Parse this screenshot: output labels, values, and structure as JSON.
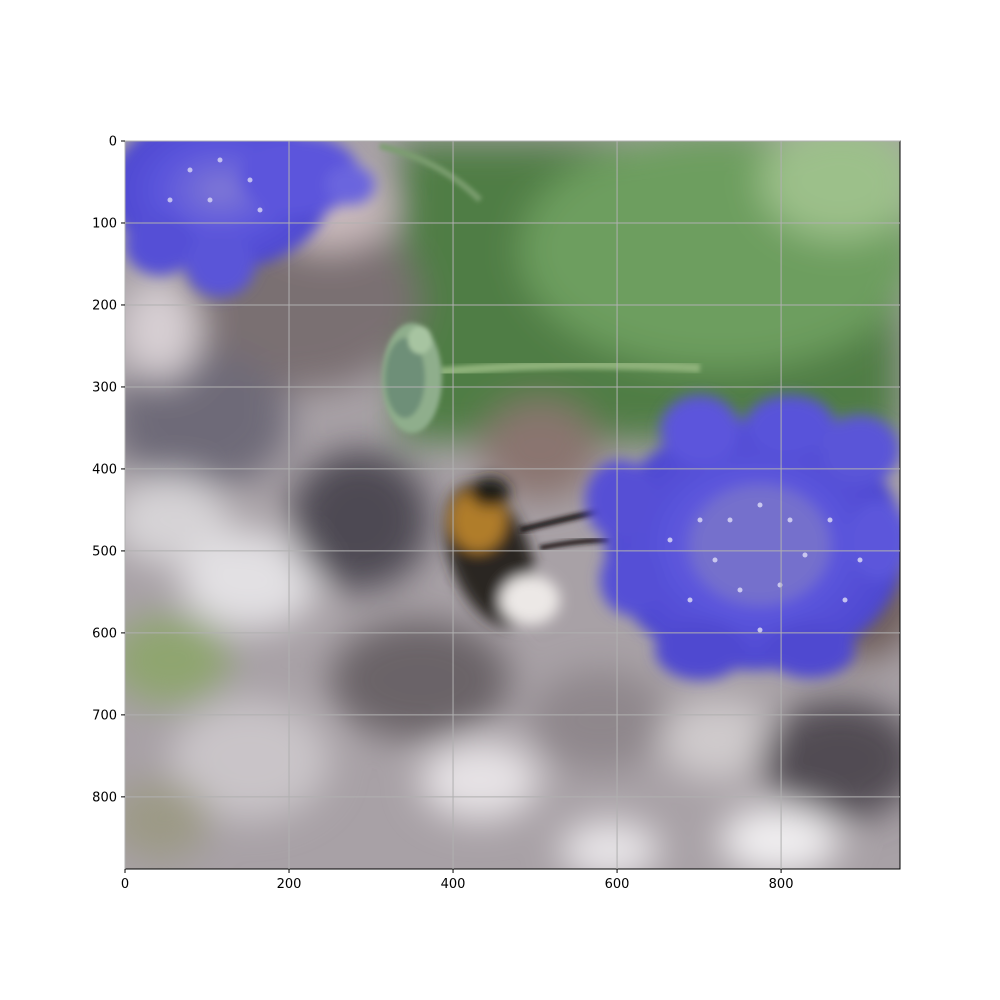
{
  "chart_data": {
    "type": "image",
    "title": "",
    "xlabel": "",
    "ylabel": "",
    "grid": true,
    "xlim": [
      0,
      945
    ],
    "ylim": [
      888,
      0
    ],
    "xticks": [
      0,
      200,
      400,
      600,
      800
    ],
    "yticks": [
      0,
      100,
      200,
      300,
      400,
      500,
      600,
      700,
      800
    ],
    "image_description_note": "",
    "colors": {
      "grid": "#b0b0b0",
      "flower": "#5a55d8",
      "foliage": "#4f8a45",
      "ground": "#a9a2a8",
      "bee_body": "#2a2420",
      "bee_band": "#c08a2a"
    }
  }
}
